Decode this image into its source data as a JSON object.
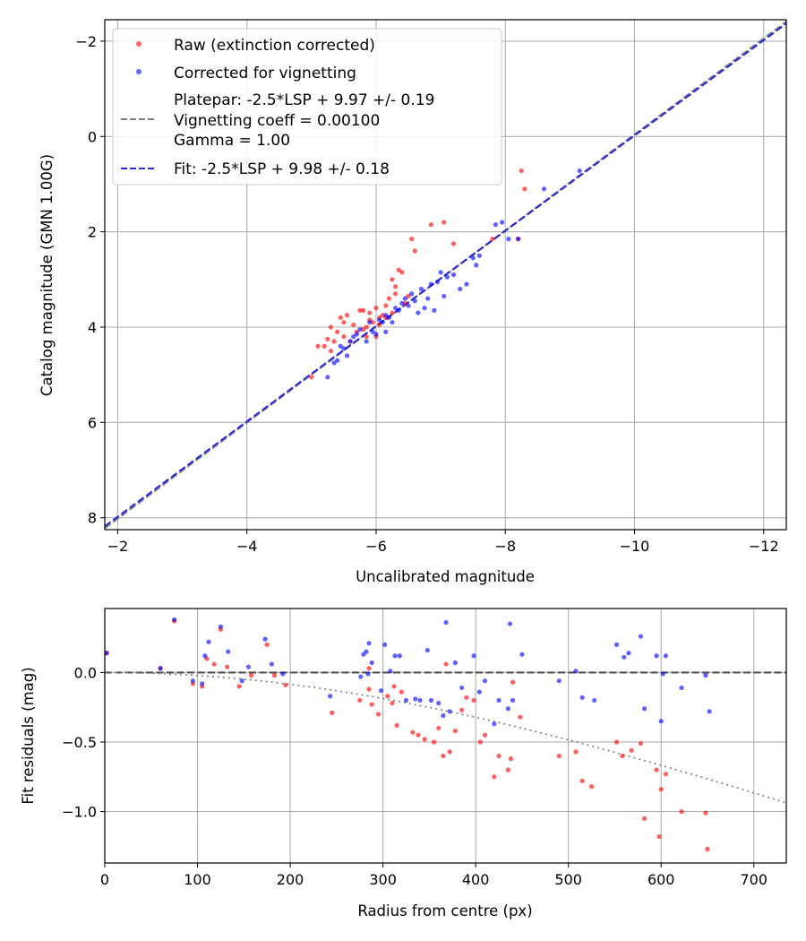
{
  "chart_data": [
    {
      "type": "scatter",
      "xlabel": "Uncalibrated magnitude",
      "ylabel": "Catalog magnitude (GMN 1.00G)",
      "xlim": [
        -1.8,
        -12.35
      ],
      "ylim": [
        8.25,
        -2.45
      ],
      "xticks": [
        -2,
        -4,
        -6,
        -8,
        -10,
        -12
      ],
      "xtick_labels": [
        "−2",
        "−4",
        "−6",
        "−8",
        "−10",
        "−12"
      ],
      "yticks": [
        -2,
        0,
        2,
        4,
        6,
        8
      ],
      "ytick_labels": [
        "−2",
        "0",
        "2",
        "4",
        "6",
        "8"
      ],
      "grid": true,
      "legend_position": "upper-left",
      "legend": [
        {
          "label": "Raw (extinction corrected)",
          "kind": "marker",
          "color": "#ff0000"
        },
        {
          "label": "Corrected for vignetting",
          "kind": "marker",
          "color": "#0000ff"
        },
        {
          "lines": [
            "Platepar: -2.5*LSP + 9.97 +/- 0.19",
            "Vignetting coeff = 0.00100",
            "Gamma = 1.00"
          ],
          "kind": "dashed",
          "color": "#808080"
        },
        {
          "label": "Fit: -2.5*LSP + 9.98 +/- 0.18",
          "kind": "dashed",
          "color": "#2a2ad4"
        }
      ],
      "lines": [
        {
          "name": "Platepar",
          "x": [
            -1.8,
            -12.35
          ],
          "y": [
            8.22,
            -2.41
          ],
          "color": "#808080",
          "style": "dashed"
        },
        {
          "name": "Fit",
          "x": [
            -1.8,
            -12.35
          ],
          "y": [
            8.18,
            -2.37
          ],
          "color": "#2a2ad4",
          "style": "dashed"
        }
      ],
      "series": [
        {
          "name": "Raw (extinction corrected)",
          "color": "#ff0000",
          "points": [
            [
              -5.0,
              5.05
            ],
            [
              -5.1,
              4.4
            ],
            [
              -5.2,
              4.4
            ],
            [
              -5.25,
              4.25
            ],
            [
              -5.3,
              4.0
            ],
            [
              -5.3,
              4.5
            ],
            [
              -5.35,
              4.3
            ],
            [
              -5.4,
              4.1
            ],
            [
              -5.45,
              3.8
            ],
            [
              -5.5,
              3.9
            ],
            [
              -5.5,
              4.2
            ],
            [
              -5.55,
              3.75
            ],
            [
              -5.6,
              4.3
            ],
            [
              -5.65,
              3.95
            ],
            [
              -5.7,
              4.1
            ],
            [
              -5.75,
              3.65
            ],
            [
              -5.8,
              3.65
            ],
            [
              -5.8,
              4.05
            ],
            [
              -5.85,
              4.0
            ],
            [
              -5.85,
              4.2
            ],
            [
              -5.9,
              3.7
            ],
            [
              -5.95,
              3.9
            ],
            [
              -6.0,
              4.2
            ],
            [
              -6.0,
              3.6
            ],
            [
              -6.05,
              3.8
            ],
            [
              -6.1,
              3.75
            ],
            [
              -6.15,
              3.55
            ],
            [
              -6.2,
              3.4
            ],
            [
              -6.25,
              3.0
            ],
            [
              -6.25,
              3.7
            ],
            [
              -6.3,
              3.3
            ],
            [
              -6.3,
              3.15
            ],
            [
              -6.35,
              2.8
            ],
            [
              -6.4,
              2.85
            ],
            [
              -6.45,
              3.5
            ],
            [
              -6.5,
              3.35
            ],
            [
              -6.55,
              2.15
            ],
            [
              -6.6,
              2.4
            ],
            [
              -6.85,
              1.85
            ],
            [
              -7.05,
              1.8
            ],
            [
              -7.2,
              2.25
            ],
            [
              -7.8,
              2.15
            ],
            [
              -8.25,
              0.72
            ],
            [
              -8.3,
              1.1
            ],
            [
              -8.2,
              2.15
            ],
            [
              -5.9,
              3.85
            ],
            [
              -6.05,
              3.95
            ],
            [
              -6.15,
              3.8
            ]
          ]
        },
        {
          "name": "Corrected for vignetting",
          "color": "#0000ff",
          "points": [
            [
              -5.25,
              5.05
            ],
            [
              -5.35,
              4.75
            ],
            [
              -5.4,
              4.7
            ],
            [
              -5.45,
              4.4
            ],
            [
              -5.5,
              4.45
            ],
            [
              -5.6,
              4.3
            ],
            [
              -5.65,
              4.2
            ],
            [
              -5.7,
              4.15
            ],
            [
              -5.75,
              4.05
            ],
            [
              -5.85,
              4.3
            ],
            [
              -5.9,
              3.9
            ],
            [
              -5.95,
              4.1
            ],
            [
              -6.0,
              4.15
            ],
            [
              -6.05,
              3.85
            ],
            [
              -6.1,
              3.9
            ],
            [
              -6.15,
              4.1
            ],
            [
              -6.2,
              3.8
            ],
            [
              -6.25,
              3.9
            ],
            [
              -6.3,
              3.6
            ],
            [
              -6.35,
              3.65
            ],
            [
              -6.4,
              3.5
            ],
            [
              -6.45,
              3.4
            ],
            [
              -6.5,
              3.55
            ],
            [
              -6.55,
              3.3
            ],
            [
              -6.6,
              3.45
            ],
            [
              -6.65,
              3.7
            ],
            [
              -6.7,
              3.2
            ],
            [
              -6.75,
              3.6
            ],
            [
              -6.8,
              3.4
            ],
            [
              -6.85,
              3.1
            ],
            [
              -6.9,
              3.65
            ],
            [
              -6.95,
              3.05
            ],
            [
              -7.0,
              2.85
            ],
            [
              -7.05,
              3.35
            ],
            [
              -7.1,
              2.95
            ],
            [
              -7.2,
              2.9
            ],
            [
              -7.3,
              3.2
            ],
            [
              -7.4,
              3.1
            ],
            [
              -7.5,
              2.55
            ],
            [
              -7.55,
              2.7
            ],
            [
              -7.6,
              2.5
            ],
            [
              -7.85,
              1.85
            ],
            [
              -7.95,
              1.8
            ],
            [
              -8.05,
              2.15
            ],
            [
              -8.2,
              2.15
            ],
            [
              -8.6,
              1.1
            ],
            [
              -9.15,
              0.72
            ],
            [
              -5.55,
              4.6
            ],
            [
              -6.15,
              3.75
            ]
          ]
        }
      ]
    },
    {
      "type": "scatter",
      "xlabel": "Radius from centre (px)",
      "ylabel": "Fit residuals (mag)",
      "xlim": [
        0,
        735
      ],
      "ylim": [
        -1.37,
        0.46
      ],
      "xticks": [
        0,
        100,
        200,
        300,
        400,
        500,
        600,
        700
      ],
      "xtick_labels": [
        "0",
        "100",
        "200",
        "300",
        "400",
        "500",
        "600",
        "700"
      ],
      "yticks": [
        -1.0,
        -0.5,
        0.0
      ],
      "ytick_labels": [
        "−1.0",
        "−0.5",
        "0.0"
      ],
      "grid": true,
      "lines": [
        {
          "name": "zero",
          "x": [
            0,
            735
          ],
          "y": [
            0,
            0
          ],
          "color": "#505050",
          "style": "dashed"
        },
        {
          "name": "vignetting-model",
          "type": "vignetting",
          "coeff": 0.001,
          "color": "#808080",
          "style": "dotted"
        }
      ],
      "series": [
        {
          "name": "Raw",
          "color": "#ff0000",
          "points": [
            [
              2,
              0.14
            ],
            [
              60,
              0.03
            ],
            [
              75,
              0.37
            ],
            [
              95,
              -0.08
            ],
            [
              105,
              -0.1
            ],
            [
              110,
              0.1
            ],
            [
              125,
              0.31
            ],
            [
              145,
              -0.1
            ],
            [
              158,
              -0.02
            ],
            [
              175,
              0.2
            ],
            [
              183,
              -0.02
            ],
            [
              195,
              -0.09
            ],
            [
              245,
              -0.29
            ],
            [
              275,
              -0.2
            ],
            [
              285,
              -0.12
            ],
            [
              285,
              0.03
            ],
            [
              288,
              -0.23
            ],
            [
              295,
              -0.3
            ],
            [
              305,
              -0.17
            ],
            [
              310,
              -0.22
            ],
            [
              312,
              -0.1
            ],
            [
              315,
              -0.38
            ],
            [
              320,
              -0.14
            ],
            [
              332,
              -0.43
            ],
            [
              338,
              -0.45
            ],
            [
              345,
              -0.48
            ],
            [
              355,
              -0.5
            ],
            [
              360,
              -0.4
            ],
            [
              365,
              -0.6
            ],
            [
              368,
              0.06
            ],
            [
              372,
              -0.57
            ],
            [
              378,
              -0.42
            ],
            [
              385,
              -0.27
            ],
            [
              390,
              -0.18
            ],
            [
              398,
              -0.2
            ],
            [
              405,
              -0.5
            ],
            [
              410,
              -0.45
            ],
            [
              420,
              -0.75
            ],
            [
              425,
              -0.6
            ],
            [
              435,
              -0.7
            ],
            [
              438,
              -0.62
            ],
            [
              440,
              -0.07
            ],
            [
              448,
              -0.32
            ],
            [
              490,
              -0.6
            ],
            [
              508,
              -0.57
            ],
            [
              515,
              -0.78
            ],
            [
              525,
              -0.82
            ],
            [
              552,
              -0.5
            ],
            [
              558,
              -0.6
            ],
            [
              568,
              -0.56
            ],
            [
              578,
              -0.51
            ],
            [
              582,
              -1.05
            ],
            [
              595,
              -0.7
            ],
            [
              598,
              -1.18
            ],
            [
              600,
              -0.84
            ],
            [
              605,
              -0.73
            ],
            [
              622,
              -1.0
            ],
            [
              648,
              -1.01
            ],
            [
              650,
              -1.27
            ],
            [
              118,
              0.06
            ],
            [
              132,
              0.04
            ]
          ]
        },
        {
          "name": "Corrected",
          "color": "#0000ff",
          "points": [
            [
              2,
              0.14
            ],
            [
              60,
              0.03
            ],
            [
              75,
              0.38
            ],
            [
              95,
              -0.06
            ],
            [
              105,
              -0.08
            ],
            [
              108,
              0.12
            ],
            [
              112,
              0.22
            ],
            [
              125,
              0.33
            ],
            [
              133,
              0.15
            ],
            [
              148,
              -0.06
            ],
            [
              155,
              0.04
            ],
            [
              173,
              0.24
            ],
            [
              180,
              0.06
            ],
            [
              192,
              -0.01
            ],
            [
              243,
              -0.17
            ],
            [
              276,
              -0.03
            ],
            [
              279,
              0.13
            ],
            [
              282,
              0.15
            ],
            [
              284,
              -0.01
            ],
            [
              288,
              0.07
            ],
            [
              285,
              0.21
            ],
            [
              298,
              -0.13
            ],
            [
              302,
              0.2
            ],
            [
              308,
              0.01
            ],
            [
              313,
              0.12
            ],
            [
              318,
              0.12
            ],
            [
              325,
              -0.2
            ],
            [
              335,
              -0.19
            ],
            [
              340,
              -0.2
            ],
            [
              348,
              0.16
            ],
            [
              352,
              -0.2
            ],
            [
              360,
              -0.22
            ],
            [
              365,
              -0.31
            ],
            [
              368,
              0.36
            ],
            [
              372,
              -0.28
            ],
            [
              378,
              0.07
            ],
            [
              385,
              -0.11
            ],
            [
              398,
              0.12
            ],
            [
              404,
              -0.14
            ],
            [
              410,
              -0.06
            ],
            [
              420,
              -0.37
            ],
            [
              425,
              -0.2
            ],
            [
              435,
              -0.26
            ],
            [
              437,
              0.35
            ],
            [
              440,
              -0.2
            ],
            [
              450,
              0.13
            ],
            [
              490,
              -0.06
            ],
            [
              508,
              0.01
            ],
            [
              515,
              -0.18
            ],
            [
              528,
              -0.2
            ],
            [
              552,
              0.2
            ],
            [
              560,
              0.11
            ],
            [
              565,
              0.14
            ],
            [
              578,
              0.26
            ],
            [
              582,
              -0.26
            ],
            [
              595,
              0.12
            ],
            [
              600,
              -0.35
            ],
            [
              602,
              -0.01
            ],
            [
              605,
              0.12
            ],
            [
              622,
              -0.11
            ],
            [
              648,
              -0.02
            ],
            [
              652,
              -0.28
            ]
          ]
        }
      ]
    }
  ]
}
